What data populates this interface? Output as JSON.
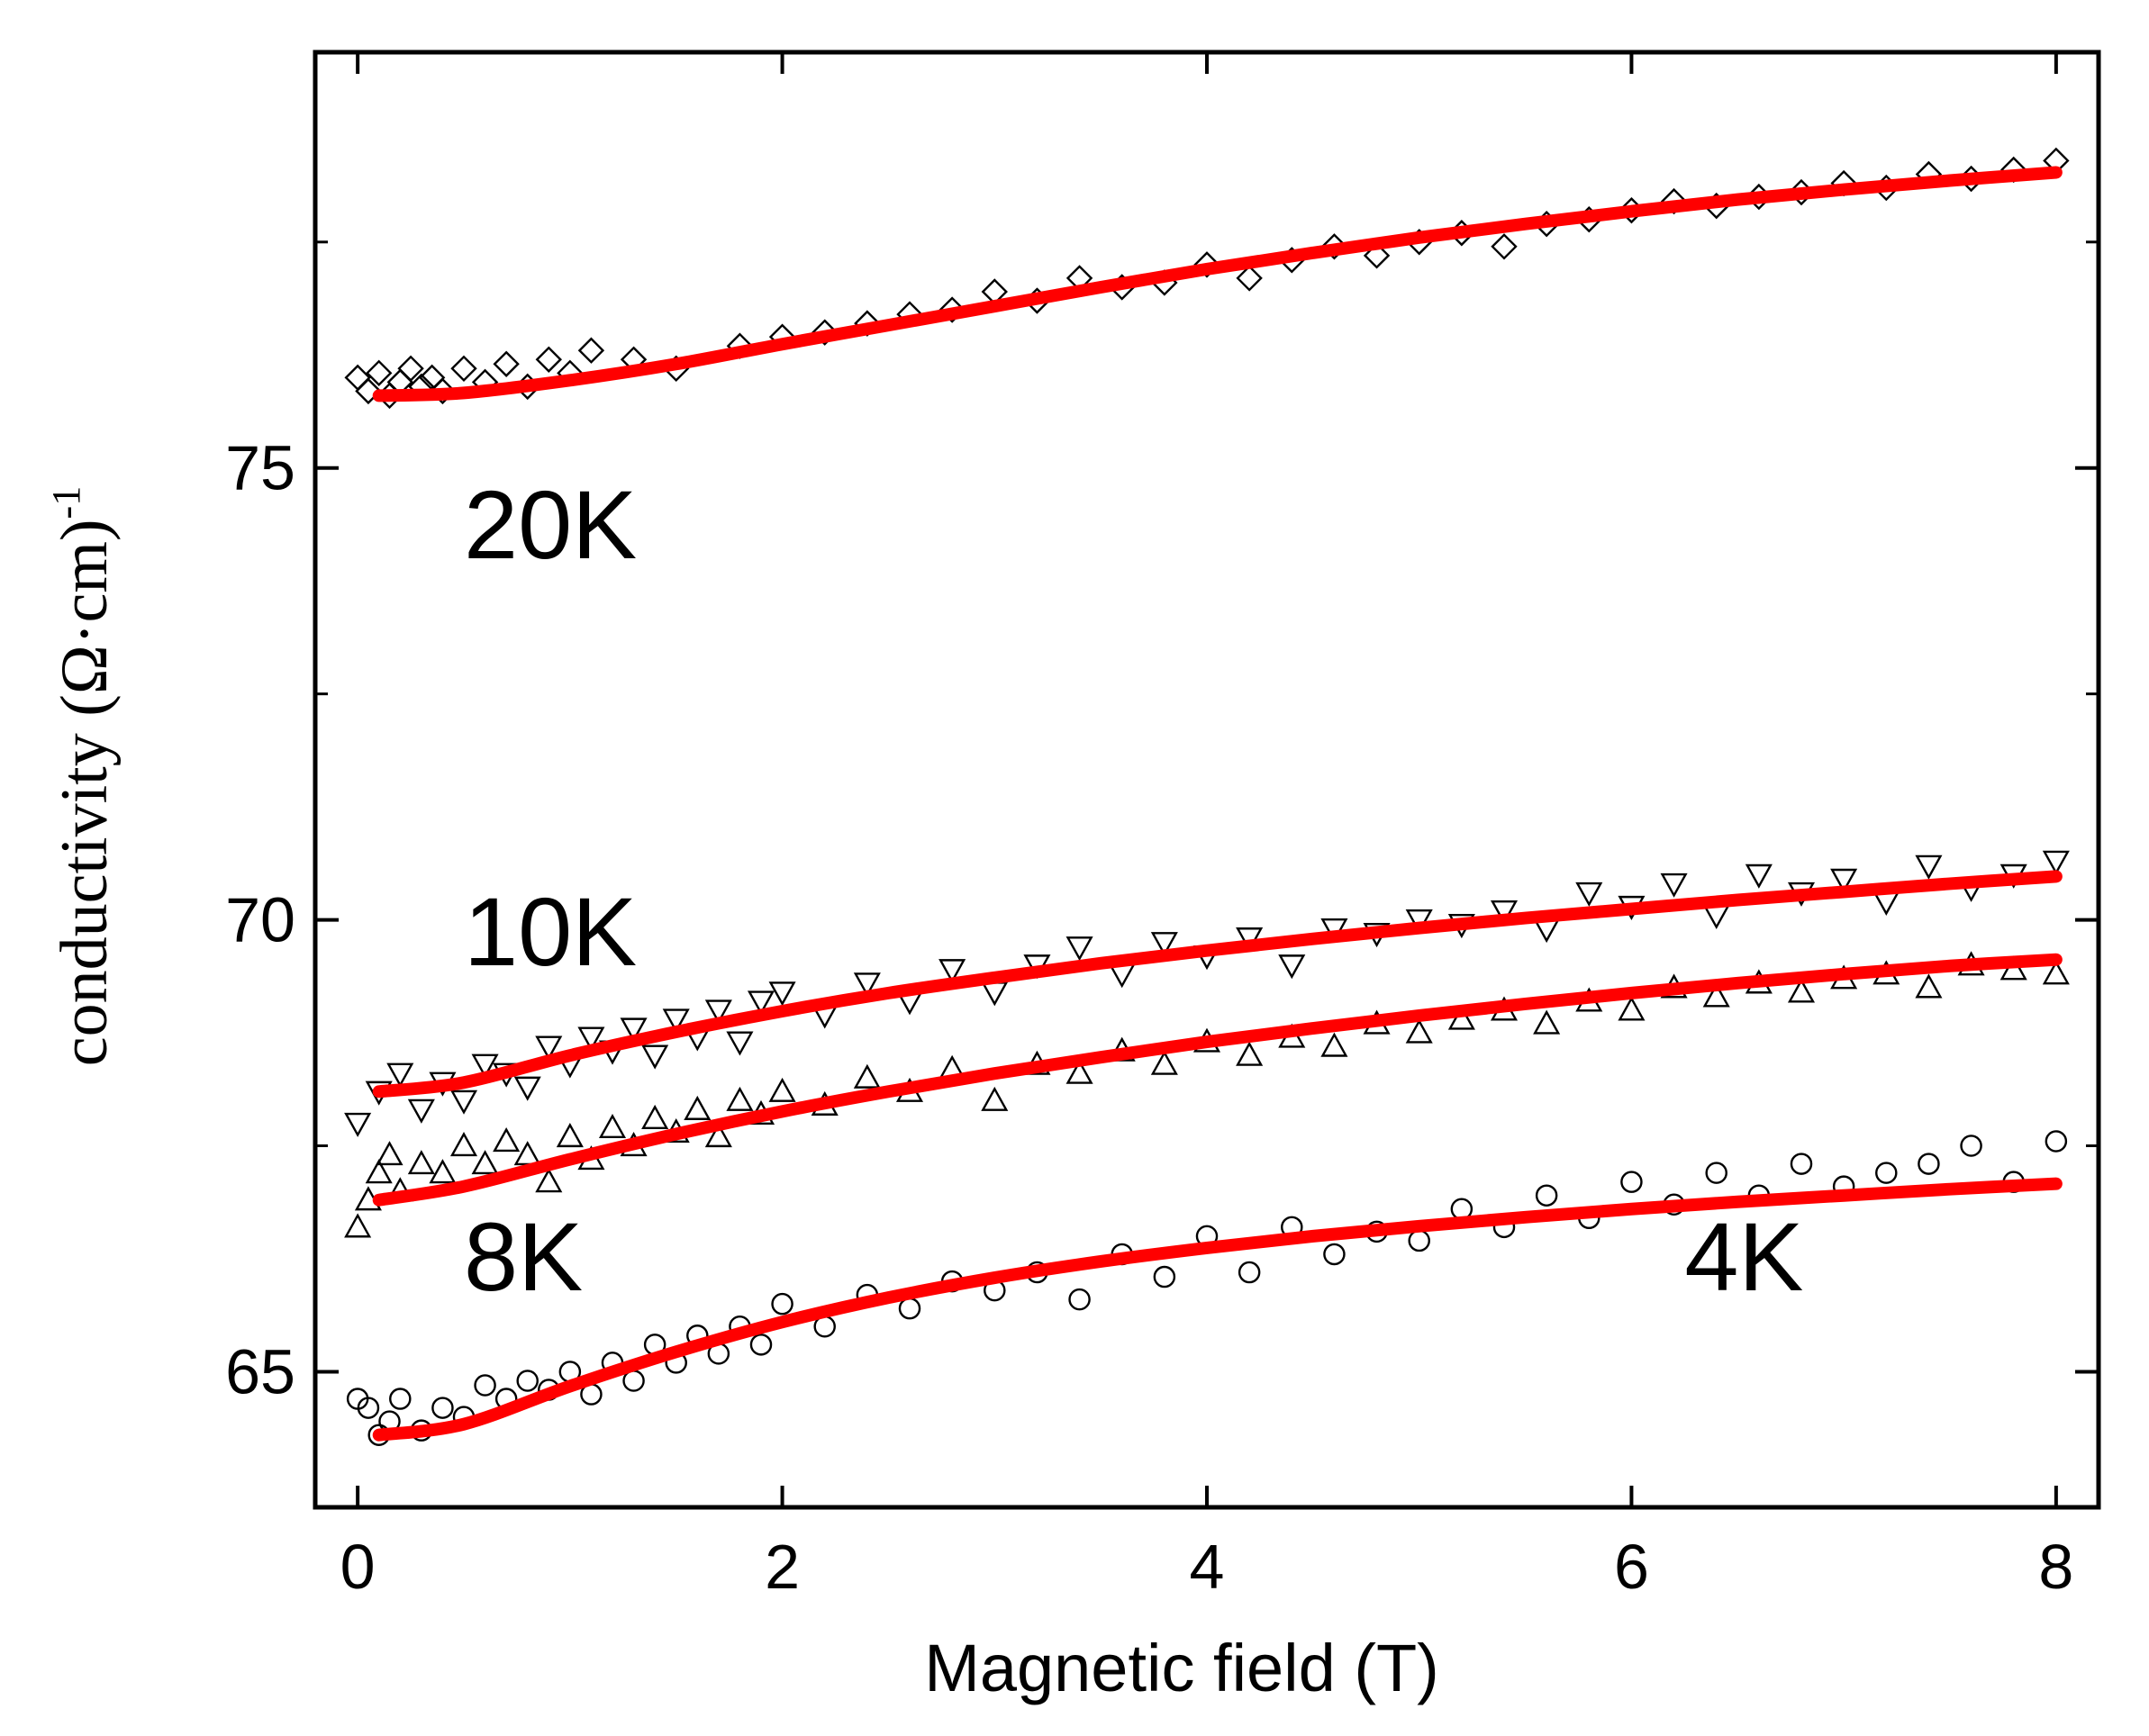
{
  "chart_data": {
    "type": "scatter",
    "title": "",
    "xlabel": "Magnetic field (T)",
    "ylabel": "conductivity (Ω·cm)",
    "ylabel_superscript": "-1",
    "xlim": [
      -0.2,
      8.2
    ],
    "ylim": [
      63.5,
      79.6
    ],
    "xticks": [
      0,
      2,
      4,
      6,
      8
    ],
    "xtick_labels": [
      "0",
      "2",
      "4",
      "6",
      "8"
    ],
    "yticks": [
      65,
      70,
      75
    ],
    "ytick_labels": [
      "65",
      "70",
      "75"
    ],
    "minor_yticks": [
      67.5,
      72.5,
      77.5
    ],
    "grid": false,
    "fit_color": "#ff0000",
    "marker_color": "#000000",
    "series": [
      {
        "name": "20K",
        "marker": "diamond",
        "fit": {
          "x": [
            0.1,
            0.5,
            1,
            1.5,
            2,
            2.5,
            3,
            3.5,
            4,
            4.5,
            5,
            5.5,
            6,
            6.5,
            7,
            7.5,
            8
          ],
          "y": [
            75.8,
            75.83,
            75.97,
            76.15,
            76.37,
            76.58,
            76.79,
            77.0,
            77.2,
            77.38,
            77.55,
            77.7,
            77.84,
            77.97,
            78.08,
            78.18,
            78.27
          ]
        },
        "points": {
          "x": [
            0.0,
            0.05,
            0.1,
            0.15,
            0.2,
            0.25,
            0.3,
            0.35,
            0.4,
            0.5,
            0.6,
            0.7,
            0.8,
            0.9,
            1.0,
            1.1,
            1.3,
            1.5,
            1.8,
            2.0,
            2.2,
            2.4,
            2.6,
            2.8,
            3.0,
            3.2,
            3.4,
            3.6,
            3.8,
            4.0,
            4.2,
            4.4,
            4.6,
            4.8,
            5.0,
            5.2,
            5.4,
            5.6,
            5.8,
            6.0,
            6.2,
            6.4,
            6.6,
            6.8,
            7.0,
            7.2,
            7.4,
            7.6,
            7.8,
            8.0
          ],
          "y": [
            76.0,
            75.85,
            76.05,
            75.8,
            75.95,
            76.1,
            75.9,
            76.0,
            75.85,
            76.1,
            75.95,
            76.15,
            75.9,
            76.2,
            76.05,
            76.3,
            76.2,
            76.1,
            76.35,
            76.45,
            76.5,
            76.6,
            76.7,
            76.75,
            76.95,
            76.85,
            77.1,
            77.0,
            77.05,
            77.25,
            77.1,
            77.3,
            77.45,
            77.35,
            77.5,
            77.6,
            77.45,
            77.7,
            77.75,
            77.85,
            77.95,
            77.9,
            78.0,
            78.05,
            78.15,
            78.1,
            78.25,
            78.2,
            78.3,
            78.4
          ]
        }
      },
      {
        "name": "10K",
        "marker": "triangle-down",
        "fit": {
          "x": [
            0.1,
            0.5,
            1,
            1.5,
            2,
            2.5,
            3,
            3.5,
            4,
            4.5,
            5,
            5.5,
            6,
            6.5,
            7,
            7.5,
            8
          ],
          "y": [
            68.1,
            68.2,
            68.5,
            68.76,
            68.99,
            69.19,
            69.36,
            69.52,
            69.66,
            69.79,
            69.91,
            70.02,
            70.12,
            70.22,
            70.31,
            70.4,
            70.48
          ]
        },
        "points": {
          "x": [
            0.0,
            0.1,
            0.2,
            0.3,
            0.4,
            0.5,
            0.6,
            0.7,
            0.8,
            0.9,
            1.0,
            1.1,
            1.2,
            1.3,
            1.4,
            1.5,
            1.6,
            1.7,
            1.8,
            1.9,
            2.0,
            2.2,
            2.4,
            2.6,
            2.8,
            3.0,
            3.2,
            3.4,
            3.6,
            3.8,
            4.0,
            4.2,
            4.4,
            4.6,
            4.8,
            5.0,
            5.2,
            5.4,
            5.6,
            5.8,
            6.0,
            6.2,
            6.4,
            6.6,
            6.8,
            7.0,
            7.2,
            7.4,
            7.6,
            7.8,
            8.0
          ],
          "y": [
            67.75,
            68.1,
            68.3,
            67.9,
            68.2,
            68.0,
            68.4,
            68.3,
            68.15,
            68.6,
            68.4,
            68.7,
            68.55,
            68.8,
            68.5,
            68.9,
            68.7,
            69.0,
            68.65,
            69.1,
            69.2,
            68.95,
            69.3,
            69.1,
            69.45,
            69.2,
            69.5,
            69.7,
            69.4,
            69.75,
            69.6,
            69.8,
            69.5,
            69.9,
            69.85,
            70.0,
            69.95,
            70.1,
            69.9,
            70.3,
            70.15,
            70.4,
            70.05,
            70.5,
            70.3,
            70.45,
            70.2,
            70.6,
            70.35,
            70.5,
            70.65
          ]
        }
      },
      {
        "name": "8K",
        "marker": "triangle-up",
        "fit": {
          "x": [
            0.1,
            0.5,
            1,
            1.5,
            2,
            2.5,
            3,
            3.5,
            4,
            4.5,
            5,
            5.5,
            6,
            6.5,
            7,
            7.5,
            8
          ],
          "y": [
            66.9,
            67.05,
            67.35,
            67.63,
            67.88,
            68.1,
            68.3,
            68.48,
            68.65,
            68.8,
            68.94,
            69.07,
            69.19,
            69.3,
            69.4,
            69.49,
            69.56
          ]
        },
        "points": {
          "x": [
            0.0,
            0.05,
            0.1,
            0.15,
            0.2,
            0.3,
            0.4,
            0.5,
            0.6,
            0.7,
            0.8,
            0.9,
            1.0,
            1.1,
            1.2,
            1.3,
            1.4,
            1.5,
            1.6,
            1.7,
            1.8,
            1.9,
            2.0,
            2.2,
            2.4,
            2.6,
            2.8,
            3.0,
            3.2,
            3.4,
            3.6,
            3.8,
            4.0,
            4.2,
            4.4,
            4.6,
            4.8,
            5.0,
            5.2,
            5.4,
            5.6,
            5.8,
            6.0,
            6.2,
            6.4,
            6.6,
            6.8,
            7.0,
            7.2,
            7.4,
            7.6,
            7.8,
            8.0
          ],
          "y": [
            66.6,
            66.9,
            67.2,
            67.4,
            67.0,
            67.3,
            67.2,
            67.5,
            67.3,
            67.55,
            67.4,
            67.1,
            67.6,
            67.35,
            67.7,
            67.5,
            67.8,
            67.65,
            67.9,
            67.6,
            68.0,
            67.85,
            68.1,
            67.95,
            68.25,
            68.1,
            68.35,
            68.0,
            68.4,
            68.3,
            68.55,
            68.4,
            68.65,
            68.5,
            68.7,
            68.6,
            68.85,
            68.75,
            68.9,
            69.0,
            68.85,
            69.1,
            69.0,
            69.25,
            69.15,
            69.3,
            69.2,
            69.35,
            69.4,
            69.25,
            69.5,
            69.45,
            69.4
          ]
        }
      },
      {
        "name": "4K",
        "marker": "circle",
        "fit": {
          "x": [
            0.1,
            0.5,
            1,
            1.5,
            2,
            2.5,
            3,
            3.5,
            4,
            4.5,
            5,
            5.5,
            6,
            6.5,
            7,
            7.5,
            8
          ],
          "y": [
            64.3,
            64.42,
            64.84,
            65.22,
            65.55,
            65.82,
            66.04,
            66.22,
            66.37,
            66.5,
            66.61,
            66.71,
            66.8,
            66.88,
            66.95,
            67.02,
            67.08
          ]
        },
        "points": {
          "x": [
            0.0,
            0.05,
            0.1,
            0.15,
            0.2,
            0.3,
            0.4,
            0.5,
            0.6,
            0.7,
            0.8,
            0.9,
            1.0,
            1.1,
            1.2,
            1.3,
            1.4,
            1.5,
            1.6,
            1.7,
            1.8,
            1.9,
            2.0,
            2.2,
            2.4,
            2.6,
            2.8,
            3.0,
            3.2,
            3.4,
            3.6,
            3.8,
            4.0,
            4.2,
            4.4,
            4.6,
            4.8,
            5.0,
            5.2,
            5.4,
            5.6,
            5.8,
            6.0,
            6.2,
            6.4,
            6.6,
            6.8,
            7.0,
            7.2,
            7.4,
            7.6,
            7.8,
            8.0
          ],
          "y": [
            64.7,
            64.6,
            64.3,
            64.45,
            64.7,
            64.35,
            64.6,
            64.5,
            64.85,
            64.7,
            64.9,
            64.8,
            65.0,
            64.75,
            65.1,
            64.9,
            65.3,
            65.1,
            65.4,
            65.2,
            65.5,
            65.3,
            65.75,
            65.5,
            65.85,
            65.7,
            66.0,
            65.9,
            66.1,
            65.8,
            66.3,
            66.05,
            66.5,
            66.1,
            66.6,
            66.3,
            66.55,
            66.45,
            66.8,
            66.6,
            66.95,
            66.7,
            67.1,
            66.85,
            67.2,
            66.95,
            67.3,
            67.05,
            67.2,
            67.3,
            67.5,
            67.1,
            67.55
          ]
        }
      }
    ],
    "annotations": [
      {
        "text": "20K",
        "x": 0.5,
        "y": 74.0
      },
      {
        "text": "10K",
        "x": 0.5,
        "y": 69.5
      },
      {
        "text": "8K",
        "x": 0.5,
        "y": 65.9
      },
      {
        "text": "4K",
        "x": 6.25,
        "y": 65.9
      }
    ]
  }
}
